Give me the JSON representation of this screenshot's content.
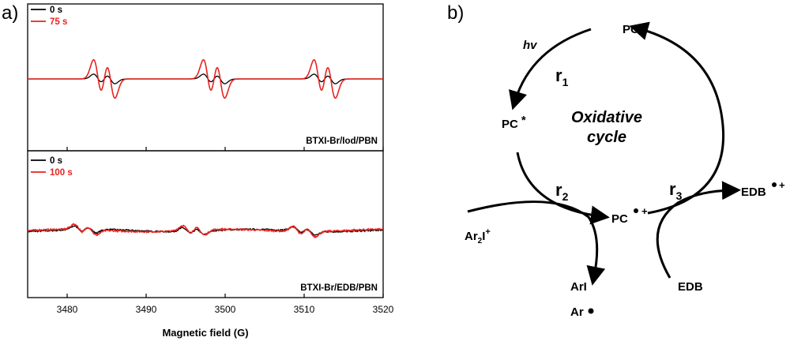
{
  "panel_labels": {
    "a": "a)",
    "b": "b)"
  },
  "chart_data": {
    "type": "line",
    "xlabel": "Magnetic field (G)",
    "xlim": [
      3475,
      3520
    ],
    "xticks": [
      3480,
      3490,
      3500,
      3510,
      3520
    ],
    "panels": [
      {
        "sample_label": "BTXI-Br/Iod/PBN",
        "legend_position": "top-left",
        "lines": [
          {
            "center": 3484.7,
            "width": 0.55
          },
          {
            "center": 3498.6,
            "width": 0.55
          },
          {
            "center": 3512.6,
            "width": 0.55
          }
        ],
        "series": [
          {
            "name": "0 s",
            "color": "#000000",
            "amplitude": 0.25
          },
          {
            "name": "75 s",
            "color": "#e8231f",
            "amplitude": 1.0
          }
        ]
      },
      {
        "sample_label": "BTXI-Br/EDB/PBN",
        "legend_position": "top-left",
        "lines": [
          {
            "center": 3482.3,
            "width": 0.6
          },
          {
            "center": 3496.0,
            "width": 0.6
          },
          {
            "center": 3510.0,
            "width": 0.6
          }
        ],
        "series": [
          {
            "name": "0 s",
            "color": "#000000",
            "amplitude": 0.3
          },
          {
            "name": "100 s",
            "color": "#e8231f",
            "amplitude": 0.42
          }
        ]
      }
    ]
  },
  "scheme": {
    "PC": "PC",
    "hv": "hv",
    "r1": "r",
    "r1_sub": "1",
    "r2": "r",
    "r2_sub": "2",
    "r3": "r",
    "r3_sub": "3",
    "PC_star": "PC",
    "star": "*",
    "cycle_title_1": "Oxidative",
    "cycle_title_2": "cycle",
    "PC_radical": "PC",
    "plus": "+",
    "EDB_radical": "EDB",
    "Ar2I_a": "Ar",
    "Ar2I_sub": "2",
    "Ar2I_b": "I",
    "Ar2I_sup": "+",
    "ArI": "ArI",
    "Ar_radical": "Ar",
    "EDB": "EDB"
  }
}
